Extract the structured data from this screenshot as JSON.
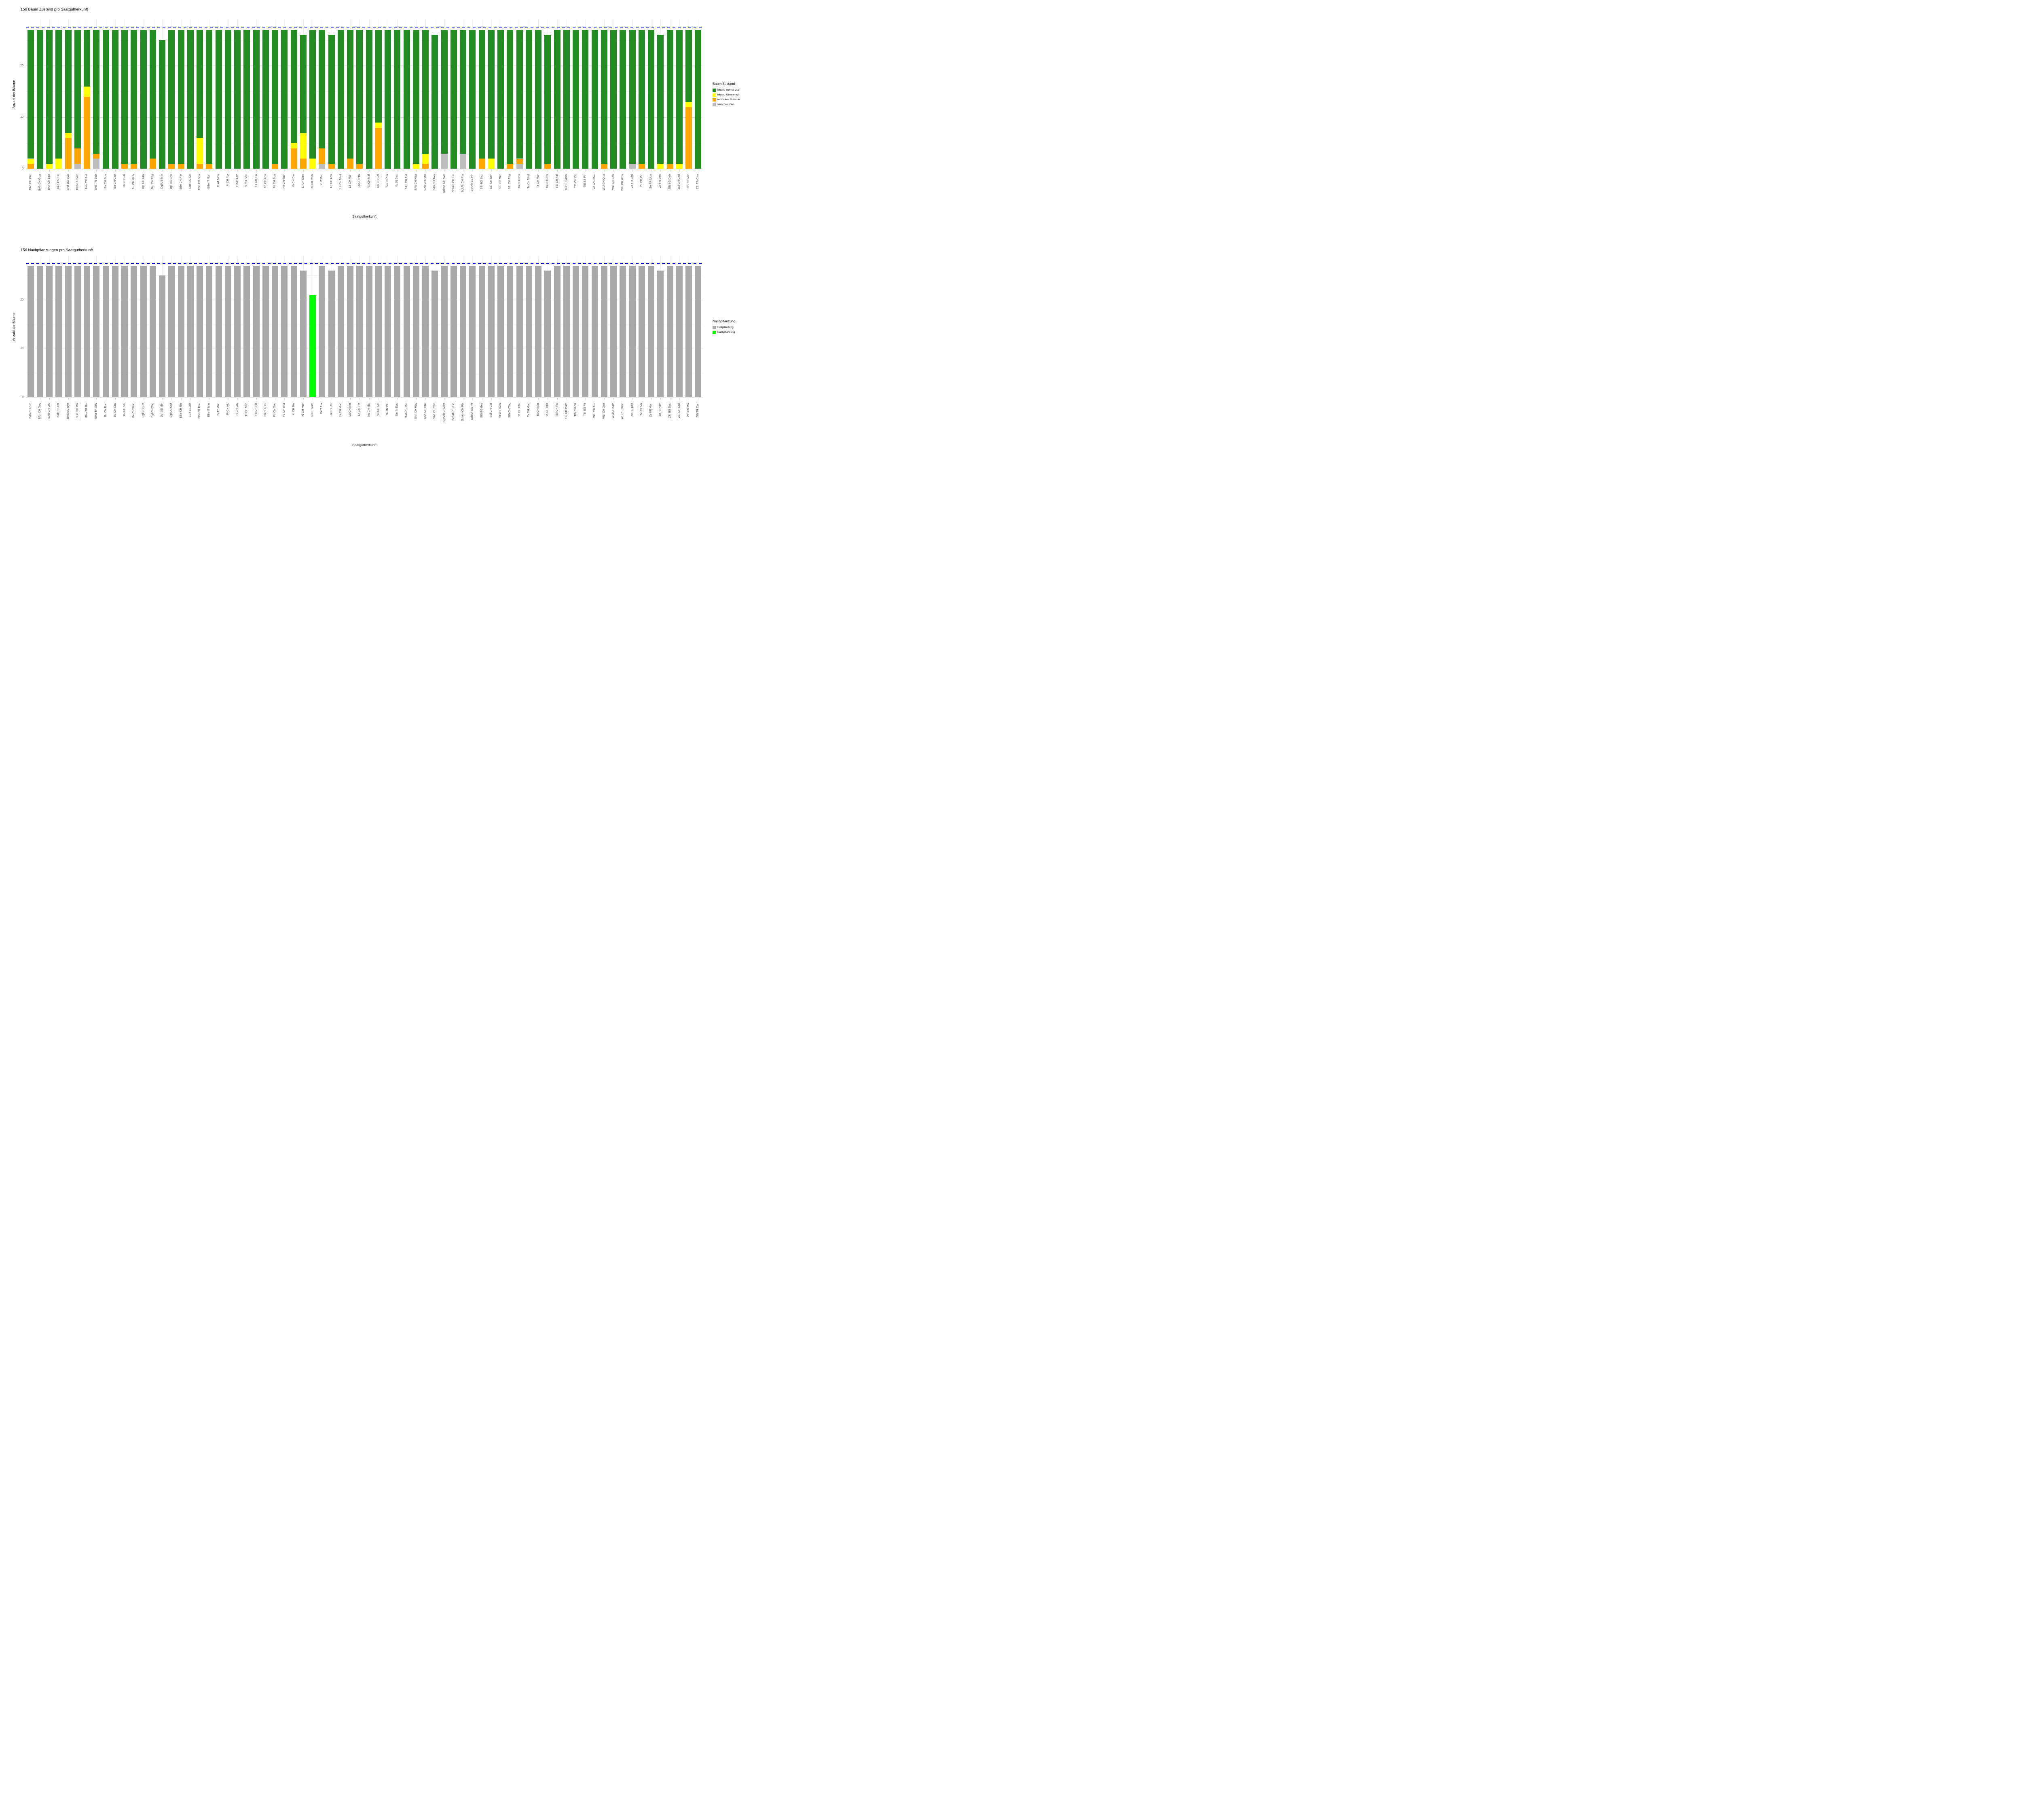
{
  "chart_data": [
    {
      "type": "bar",
      "stacked": true,
      "title": "156 Baum Zustand pro Saatgutherkunft",
      "xlabel": "Saatgutherkunft",
      "ylabel": "Anzahl der Bäume",
      "ylim": [
        0,
        29
      ],
      "yticks": [
        0,
        10,
        20
      ],
      "gridlines_major": [
        0,
        10,
        20
      ],
      "gridlines_minor": [
        5,
        15,
        25
      ],
      "ref_line": {
        "y": 27.5,
        "color": "#0000ee",
        "style": "dashed"
      },
      "legend": {
        "title": "Baum Zustand",
        "position": "right",
        "entries": [
          {
            "label": "lebend normal vital",
            "color": "#228B22"
          },
          {
            "label": "lebend kümmernd",
            "color": "#FFFF00"
          },
          {
            "label": "tot andere Ursache",
            "color": "#FFA500"
          },
          {
            "label": "verschwunden",
            "color": "#BEBEBE"
          }
        ]
      },
      "categories": [
        "BAh CH Gre",
        "BAh CH Gug",
        "BAh CH Leu",
        "BAh ES Est",
        "BHa BG Bya",
        "BHa HU Mix",
        "BHa TR Bol",
        "BHa TR Seb",
        "Bu CH Bon",
        "Bu CH Cap",
        "Bu CH Sai",
        "Bu CH Woh",
        "Dgl CH Grä",
        "Dgl CH Täg",
        "Dgl US Min",
        "Dgl US Sno",
        "EBe CH Rie",
        "EBe ES Alc",
        "EBe FR Bou",
        "EBe IT Mar",
        "Fi AT Mün",
        "Fi CH Alp",
        "Fi CH Lav",
        "Fi CH See",
        "Fö CH Flä",
        "Fö CH Leu",
        "Fö CH Sou",
        "Fö CH Wür",
        "Ki CH Die",
        "Ki CH Men",
        "Ki CH Rom",
        "Ki IT Par",
        "Lä CH Leu",
        "Lä CH Mad",
        "Lä CH Mar",
        "Lä CH Prä",
        "Nu CH Mal",
        "Nu CH Sel",
        "Nu IN Chi",
        "Nu IN Dac",
        "SAh CH Ful",
        "SAh CH Häg",
        "SAh CH Hau",
        "SAh CH Twa",
        "SchAh CH Ave",
        "SchAh CH Lie",
        "SchAh CH Pla",
        "SchAh ES Pir",
        "SEi BG Bez",
        "SEi CH Gor",
        "SEi CH Mar",
        "SEi CH Täg",
        "Ta CH Chu",
        "Ta CH Mad",
        "Ta CH Mar",
        "Ta CH Ons",
        "TEi CH Fal",
        "TEi CH Mam",
        "TEi CH Olt",
        "TEi ES Pir",
        "WLi CH Bre",
        "WLi CH Qua",
        "WLi CH Sch",
        "WLi CH Wün",
        "Ze FR Béd",
        "Ze FR Mir",
        "Ze FR Mon",
        "Ze FR Ven",
        "ZEi BG Dab",
        "ZEi CH Cad",
        "ZEi FR Mix",
        "ZEi TR Can"
      ],
      "series": [
        {
          "name": "verschwunden",
          "color": "#BEBEBE",
          "values": [
            0,
            0,
            0,
            0,
            0,
            1,
            0,
            2,
            0,
            0,
            0,
            0,
            0,
            0,
            0,
            0,
            0,
            0,
            0,
            0,
            0,
            0,
            0,
            0,
            0,
            0,
            0,
            0,
            0,
            0,
            0,
            1,
            0,
            0,
            0,
            0,
            0,
            0,
            0,
            0,
            0,
            0,
            0,
            0,
            3,
            0,
            3,
            0,
            0,
            0,
            0,
            0,
            1,
            0,
            0,
            0,
            0,
            0,
            0,
            0,
            0,
            0,
            0,
            0,
            1,
            0,
            0,
            0,
            0,
            0,
            0,
            0
          ]
        },
        {
          "name": "tot andere Ursache",
          "color": "#FFA500",
          "values": [
            1,
            0,
            0,
            0,
            6,
            3,
            14,
            1,
            0,
            0,
            1,
            1,
            0,
            2,
            0,
            1,
            1,
            0,
            1,
            1,
            0,
            0,
            0,
            0,
            0,
            0,
            1,
            0,
            4,
            2,
            0,
            3,
            1,
            0,
            2,
            1,
            0,
            8,
            0,
            0,
            0,
            0,
            1,
            0,
            0,
            0,
            0,
            0,
            2,
            0,
            0,
            1,
            1,
            0,
            0,
            1,
            0,
            0,
            0,
            0,
            0,
            1,
            0,
            0,
            0,
            1,
            0,
            0,
            1,
            0,
            12,
            0
          ]
        },
        {
          "name": "lebend kümmernd",
          "color": "#FFFF00",
          "values": [
            1,
            0,
            1,
            2,
            1,
            0,
            2,
            0,
            0,
            0,
            0,
            0,
            0,
            0,
            0,
            0,
            0,
            0,
            5,
            0,
            0,
            0,
            0,
            0,
            0,
            0,
            0,
            0,
            1,
            5,
            2,
            0,
            0,
            0,
            0,
            0,
            0,
            1,
            0,
            0,
            0,
            1,
            2,
            0,
            0,
            0,
            0,
            0,
            0,
            2,
            0,
            0,
            0,
            0,
            0,
            0,
            0,
            0,
            0,
            0,
            0,
            0,
            0,
            0,
            0,
            0,
            0,
            1,
            0,
            1,
            1,
            0
          ]
        },
        {
          "name": "lebend normal vital",
          "color": "#228B22",
          "values": [
            25,
            27,
            26,
            25,
            20,
            23,
            11,
            24,
            27,
            27,
            26,
            26,
            27,
            25,
            25,
            26,
            26,
            27,
            21,
            26,
            27,
            27,
            27,
            27,
            27,
            27,
            26,
            27,
            22,
            19,
            25,
            23,
            25,
            27,
            25,
            26,
            27,
            18,
            27,
            27,
            27,
            26,
            24,
            26,
            24,
            27,
            24,
            27,
            25,
            25,
            27,
            26,
            25,
            27,
            27,
            25,
            27,
            27,
            27,
            27,
            27,
            26,
            27,
            27,
            26,
            26,
            27,
            25,
            26,
            26,
            14,
            27
          ]
        }
      ]
    },
    {
      "type": "bar",
      "stacked": true,
      "title": "156 Nachpflanzungen pro Saatgutherkunft",
      "xlabel": "Saatgutherkunft",
      "ylabel": "Anzahl der Bäume",
      "ylim": [
        0,
        29
      ],
      "yticks": [
        0,
        10,
        20
      ],
      "gridlines_major": [
        0,
        10,
        20
      ],
      "gridlines_minor": [
        5,
        15,
        25
      ],
      "ref_line": {
        "y": 27.5,
        "color": "#0000ee",
        "style": "dashed"
      },
      "legend": {
        "title": "Nachpflanzung",
        "position": "right",
        "entries": [
          {
            "label": "Erstpflanzung",
            "color": "#A9A9A9"
          },
          {
            "label": "Nachpflanzung",
            "color": "#00FF00"
          }
        ]
      },
      "categories": [
        "BAh CH Gre",
        "BAh CH Gug",
        "BAh CH Leu",
        "BAh ES Est",
        "BHa BG Bya",
        "BHa HU Mix",
        "BHa TR Bol",
        "BHa TR Seb",
        "Bu CH Bon",
        "Bu CH Cap",
        "Bu CH Sai",
        "Bu CH Woh",
        "Dgl CH Grä",
        "Dgl CH Täg",
        "Dgl US Min",
        "Dgl US Sno",
        "EBe CH Rie",
        "EBe ES Alc",
        "EBe FR Bou",
        "EBe IT Mar",
        "Fi AT Mün",
        "Fi CH Alp",
        "Fi CH Lav",
        "Fi CH See",
        "Fö CH Flä",
        "Fö CH Leu",
        "Fö CH Sou",
        "Fö CH Wür",
        "Ki CH Die",
        "Ki CH Men",
        "Ki CH Rom",
        "Ki IT Par",
        "Lä CH Leu",
        "Lä CH Mad",
        "Lä CH Mar",
        "Lä CH Prä",
        "Nu CH Mal",
        "Nu CH Sel",
        "Nu IN Chi",
        "Nu IN Dac",
        "SAh CH Ful",
        "SAh CH Häg",
        "SAh CH Hau",
        "SAh CH Twa",
        "SchAh CH Ave",
        "SchAh CH Lie",
        "SchAh CH Pla",
        "SchAh ES Pir",
        "SEi BG Bez",
        "SEi CH Gor",
        "SEi CH Mar",
        "SEi CH Täg",
        "Ta CH Chu",
        "Ta CH Mad",
        "Ta CH Mar",
        "Ta CH Ons",
        "TEi CH Fal",
        "TEi CH Mam",
        "TEi CH Olt",
        "TEi ES Pir",
        "WLi CH Bre",
        "WLi CH Qua",
        "WLi CH Sch",
        "WLi CH Wün",
        "Ze FR Béd",
        "Ze FR Mir",
        "Ze FR Mon",
        "Ze FR Ven",
        "ZEi BG Dab",
        "ZEi CH Cad",
        "ZEi FR Mix",
        "ZEi TR Can"
      ],
      "series": [
        {
          "name": "Nachpflanzung",
          "color": "#00FF00",
          "values": [
            0,
            0,
            0,
            0,
            0,
            0,
            0,
            0,
            0,
            0,
            0,
            0,
            0,
            0,
            0,
            0,
            0,
            0,
            0,
            0,
            0,
            0,
            0,
            0,
            0,
            0,
            0,
            0,
            0,
            0,
            21,
            0,
            0,
            0,
            0,
            0,
            0,
            0,
            0,
            0,
            0,
            0,
            0,
            0,
            0,
            0,
            0,
            0,
            0,
            0,
            0,
            0,
            0,
            0,
            0,
            0,
            0,
            0,
            0,
            0,
            0,
            0,
            0,
            0,
            0,
            0,
            0,
            0,
            0,
            0,
            0,
            0
          ]
        },
        {
          "name": "Erstpflanzung",
          "color": "#A9A9A9",
          "values": [
            27,
            27,
            27,
            27,
            27,
            27,
            27,
            27,
            27,
            27,
            27,
            27,
            27,
            27,
            25,
            27,
            27,
            27,
            27,
            27,
            27,
            27,
            27,
            27,
            27,
            27,
            27,
            27,
            27,
            26,
            0,
            27,
            26,
            27,
            27,
            27,
            27,
            27,
            27,
            27,
            27,
            27,
            27,
            26,
            27,
            27,
            27,
            27,
            27,
            27,
            27,
            27,
            27,
            27,
            27,
            26,
            27,
            27,
            27,
            27,
            27,
            27,
            27,
            27,
            27,
            27,
            27,
            26,
            27,
            27,
            27,
            27
          ]
        }
      ]
    }
  ]
}
